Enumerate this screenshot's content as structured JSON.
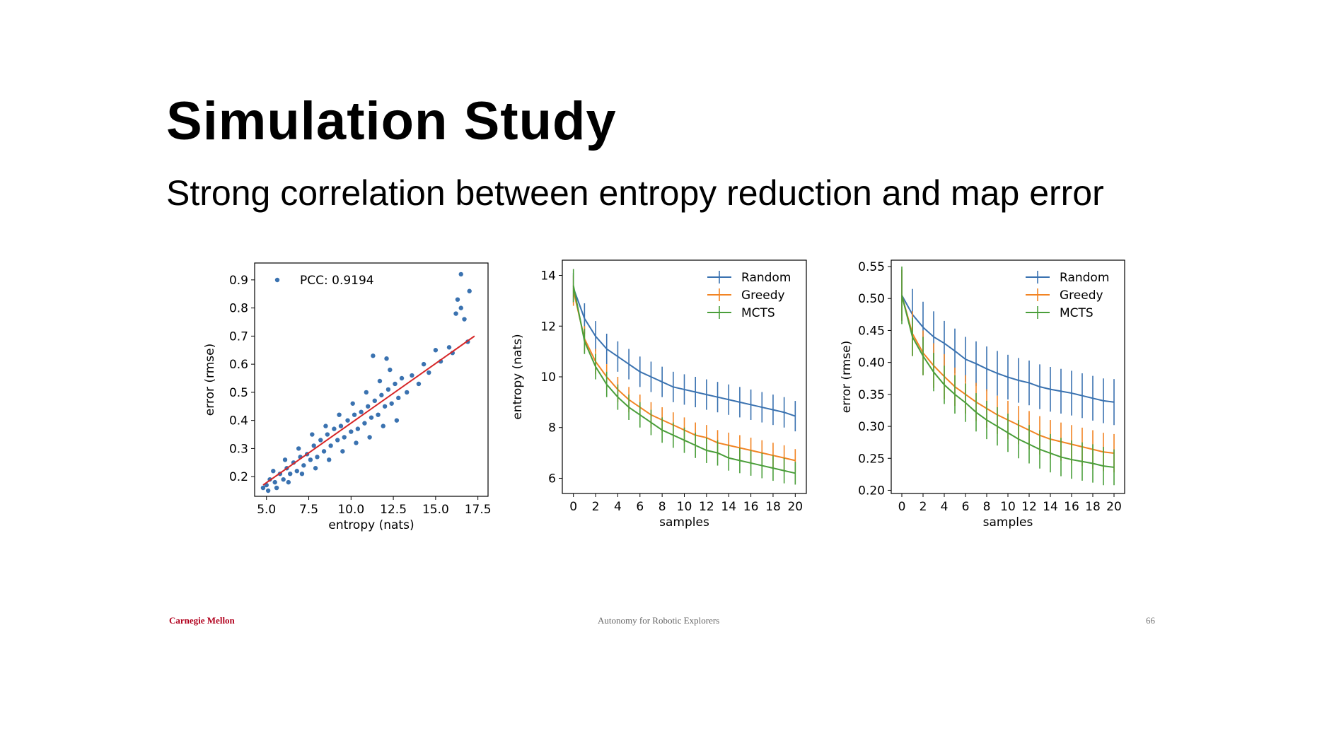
{
  "slide": {
    "title": "Simulation Study",
    "subtitle": "Strong correlation between entropy reduction and map error",
    "footer_left": "Carnegie Mellon",
    "footer_center": "Autonomy for Robotic Explorers",
    "page_number": "66"
  },
  "colors": {
    "blue": "#3a72b0",
    "orange": "#f28423",
    "green": "#4a9e3a",
    "red": "#d62728"
  },
  "chart_data": [
    {
      "type": "scatter",
      "title": "",
      "xlabel": "entropy (nats)",
      "ylabel": "error (rmse)",
      "xlim": [
        4.3,
        18.1
      ],
      "ylim": [
        0.13,
        0.96
      ],
      "xticks": [
        5.0,
        7.5,
        10.0,
        12.5,
        15.0,
        17.5
      ],
      "xtick_labels": [
        "5.0",
        "7.5",
        "10.0",
        "12.5",
        "15.0",
        "17.5"
      ],
      "yticks": [
        0.2,
        0.3,
        0.4,
        0.5,
        0.6,
        0.7,
        0.8,
        0.9
      ],
      "ytick_labels": [
        "0.2",
        "0.3",
        "0.4",
        "0.5",
        "0.6",
        "0.7",
        "0.8",
        "0.9"
      ],
      "legend": {
        "label": "PCC: 0.9194",
        "placement": "top-left"
      },
      "fit_line": {
        "x": [
          4.8,
          17.3
        ],
        "y": [
          0.17,
          0.7
        ]
      },
      "points": [
        [
          4.8,
          0.16
        ],
        [
          5.0,
          0.17
        ],
        [
          5.2,
          0.19
        ],
        [
          5.5,
          0.18
        ],
        [
          5.8,
          0.21
        ],
        [
          6.0,
          0.19
        ],
        [
          6.2,
          0.23
        ],
        [
          6.4,
          0.21
        ],
        [
          6.6,
          0.25
        ],
        [
          6.8,
          0.22
        ],
        [
          7.0,
          0.27
        ],
        [
          7.2,
          0.24
        ],
        [
          7.4,
          0.28
        ],
        [
          7.6,
          0.26
        ],
        [
          7.8,
          0.31
        ],
        [
          8.0,
          0.27
        ],
        [
          8.2,
          0.33
        ],
        [
          8.4,
          0.29
        ],
        [
          8.6,
          0.35
        ],
        [
          8.8,
          0.31
        ],
        [
          9.0,
          0.37
        ],
        [
          9.2,
          0.33
        ],
        [
          9.4,
          0.38
        ],
        [
          9.6,
          0.34
        ],
        [
          9.8,
          0.4
        ],
        [
          10.0,
          0.36
        ],
        [
          10.2,
          0.42
        ],
        [
          10.4,
          0.37
        ],
        [
          10.6,
          0.43
        ],
        [
          10.8,
          0.39
        ],
        [
          11.0,
          0.45
        ],
        [
          11.2,
          0.41
        ],
        [
          11.4,
          0.47
        ],
        [
          11.6,
          0.42
        ],
        [
          11.8,
          0.49
        ],
        [
          12.0,
          0.45
        ],
        [
          12.2,
          0.51
        ],
        [
          12.4,
          0.46
        ],
        [
          12.6,
          0.53
        ],
        [
          12.8,
          0.48
        ],
        [
          13.0,
          0.55
        ],
        [
          13.3,
          0.5
        ],
        [
          13.6,
          0.56
        ],
        [
          14.0,
          0.53
        ],
        [
          14.3,
          0.6
        ],
        [
          14.6,
          0.57
        ],
        [
          15.0,
          0.65
        ],
        [
          15.3,
          0.61
        ],
        [
          15.8,
          0.66
        ],
        [
          16.0,
          0.64
        ],
        [
          16.2,
          0.78
        ],
        [
          16.3,
          0.83
        ],
        [
          16.5,
          0.8
        ],
        [
          16.7,
          0.76
        ],
        [
          16.5,
          0.92
        ],
        [
          17.0,
          0.86
        ],
        [
          16.9,
          0.68
        ],
        [
          5.1,
          0.15
        ],
        [
          5.6,
          0.16
        ],
        [
          6.3,
          0.18
        ],
        [
          7.1,
          0.21
        ],
        [
          7.9,
          0.23
        ],
        [
          8.7,
          0.26
        ],
        [
          9.5,
          0.29
        ],
        [
          10.3,
          0.32
        ],
        [
          11.1,
          0.34
        ],
        [
          11.9,
          0.38
        ],
        [
          12.7,
          0.4
        ],
        [
          5.4,
          0.22
        ],
        [
          6.1,
          0.26
        ],
        [
          6.9,
          0.3
        ],
        [
          7.7,
          0.35
        ],
        [
          8.5,
          0.38
        ],
        [
          9.3,
          0.42
        ],
        [
          10.1,
          0.46
        ],
        [
          10.9,
          0.5
        ],
        [
          11.7,
          0.54
        ],
        [
          12.3,
          0.58
        ],
        [
          11.3,
          0.63
        ],
        [
          12.1,
          0.62
        ]
      ]
    },
    {
      "type": "line",
      "title": "",
      "xlabel": "samples",
      "ylabel": "entropy (nats)",
      "x": [
        0,
        1,
        2,
        3,
        4,
        5,
        6,
        7,
        8,
        9,
        10,
        11,
        12,
        13,
        14,
        15,
        16,
        17,
        18,
        19,
        20
      ],
      "xlim": [
        -1,
        21
      ],
      "ylim": [
        5.4,
        14.6
      ],
      "xticks": [
        0,
        2,
        4,
        6,
        8,
        10,
        12,
        14,
        16,
        18,
        20
      ],
      "xtick_labels": [
        "0",
        "2",
        "4",
        "6",
        "8",
        "10",
        "12",
        "14",
        "16",
        "18",
        "20"
      ],
      "yticks": [
        6,
        8,
        10,
        12,
        14
      ],
      "ytick_labels": [
        "6",
        "8",
        "10",
        "12",
        "14"
      ],
      "legend_placement": "top-right",
      "series": [
        {
          "name": "Random",
          "color_key": "blue",
          "values": [
            13.5,
            12.3,
            11.6,
            11.1,
            10.8,
            10.5,
            10.2,
            10.0,
            9.8,
            9.6,
            9.5,
            9.4,
            9.3,
            9.2,
            9.1,
            9.0,
            8.9,
            8.8,
            8.7,
            8.6,
            8.45
          ],
          "errors": [
            0.6,
            0.6,
            0.6,
            0.6,
            0.6,
            0.6,
            0.6,
            0.6,
            0.6,
            0.6,
            0.6,
            0.6,
            0.6,
            0.6,
            0.6,
            0.6,
            0.6,
            0.6,
            0.6,
            0.6,
            0.6
          ]
        },
        {
          "name": "Greedy",
          "color_key": "orange",
          "values": [
            13.4,
            11.5,
            10.6,
            10.0,
            9.5,
            9.1,
            8.8,
            8.5,
            8.3,
            8.1,
            7.9,
            7.7,
            7.6,
            7.4,
            7.3,
            7.2,
            7.1,
            7.0,
            6.9,
            6.8,
            6.7
          ],
          "errors": [
            0.6,
            0.5,
            0.5,
            0.5,
            0.5,
            0.5,
            0.5,
            0.5,
            0.5,
            0.5,
            0.5,
            0.5,
            0.5,
            0.5,
            0.5,
            0.5,
            0.5,
            0.5,
            0.5,
            0.5,
            0.45
          ]
        },
        {
          "name": "MCTS",
          "color_key": "green",
          "values": [
            13.6,
            11.4,
            10.4,
            9.7,
            9.2,
            8.8,
            8.5,
            8.2,
            7.9,
            7.7,
            7.5,
            7.3,
            7.1,
            7.0,
            6.8,
            6.7,
            6.6,
            6.5,
            6.4,
            6.3,
            6.2
          ],
          "errors": [
            0.65,
            0.5,
            0.5,
            0.5,
            0.5,
            0.5,
            0.5,
            0.5,
            0.5,
            0.5,
            0.5,
            0.5,
            0.5,
            0.5,
            0.5,
            0.5,
            0.5,
            0.5,
            0.5,
            0.5,
            0.45
          ]
        }
      ]
    },
    {
      "type": "line",
      "title": "",
      "xlabel": "samples",
      "ylabel": "error (rmse)",
      "x": [
        0,
        1,
        2,
        3,
        4,
        5,
        6,
        7,
        8,
        9,
        10,
        11,
        12,
        13,
        14,
        15,
        16,
        17,
        18,
        19,
        20
      ],
      "xlim": [
        -1,
        21
      ],
      "ylim": [
        0.195,
        0.56
      ],
      "xticks": [
        0,
        2,
        4,
        6,
        8,
        10,
        12,
        14,
        16,
        18,
        20
      ],
      "xtick_labels": [
        "0",
        "2",
        "4",
        "6",
        "8",
        "10",
        "12",
        "14",
        "16",
        "18",
        "20"
      ],
      "yticks": [
        0.2,
        0.25,
        0.3,
        0.35,
        0.4,
        0.45,
        0.5,
        0.55
      ],
      "ytick_labels": [
        "0.20",
        "0.25",
        "0.30",
        "0.35",
        "0.40",
        "0.45",
        "0.50",
        "0.55"
      ],
      "legend_placement": "top-right",
      "series": [
        {
          "name": "Random",
          "color_key": "blue",
          "values": [
            0.505,
            0.475,
            0.455,
            0.44,
            0.43,
            0.418,
            0.405,
            0.398,
            0.39,
            0.383,
            0.377,
            0.372,
            0.368,
            0.362,
            0.358,
            0.355,
            0.352,
            0.348,
            0.344,
            0.34,
            0.338
          ],
          "errors": [
            0.04,
            0.04,
            0.04,
            0.04,
            0.035,
            0.035,
            0.035,
            0.035,
            0.035,
            0.035,
            0.035,
            0.035,
            0.035,
            0.035,
            0.035,
            0.035,
            0.035,
            0.035,
            0.035,
            0.035,
            0.036
          ]
        },
        {
          "name": "Greedy",
          "color_key": "orange",
          "values": [
            0.505,
            0.445,
            0.415,
            0.395,
            0.378,
            0.362,
            0.35,
            0.338,
            0.328,
            0.318,
            0.31,
            0.302,
            0.294,
            0.286,
            0.28,
            0.276,
            0.272,
            0.268,
            0.264,
            0.26,
            0.258
          ],
          "errors": [
            0.04,
            0.035,
            0.035,
            0.035,
            0.035,
            0.03,
            0.03,
            0.03,
            0.03,
            0.03,
            0.03,
            0.03,
            0.03,
            0.03,
            0.03,
            0.03,
            0.03,
            0.03,
            0.03,
            0.03,
            0.03
          ]
        },
        {
          "name": "MCTS",
          "color_key": "green",
          "values": [
            0.505,
            0.44,
            0.41,
            0.385,
            0.365,
            0.35,
            0.337,
            0.322,
            0.31,
            0.3,
            0.29,
            0.28,
            0.272,
            0.264,
            0.258,
            0.252,
            0.248,
            0.245,
            0.242,
            0.238,
            0.236
          ],
          "errors": [
            0.045,
            0.03,
            0.03,
            0.03,
            0.03,
            0.03,
            0.03,
            0.03,
            0.03,
            0.03,
            0.03,
            0.03,
            0.03,
            0.03,
            0.03,
            0.03,
            0.03,
            0.03,
            0.03,
            0.03,
            0.028
          ]
        }
      ]
    }
  ]
}
